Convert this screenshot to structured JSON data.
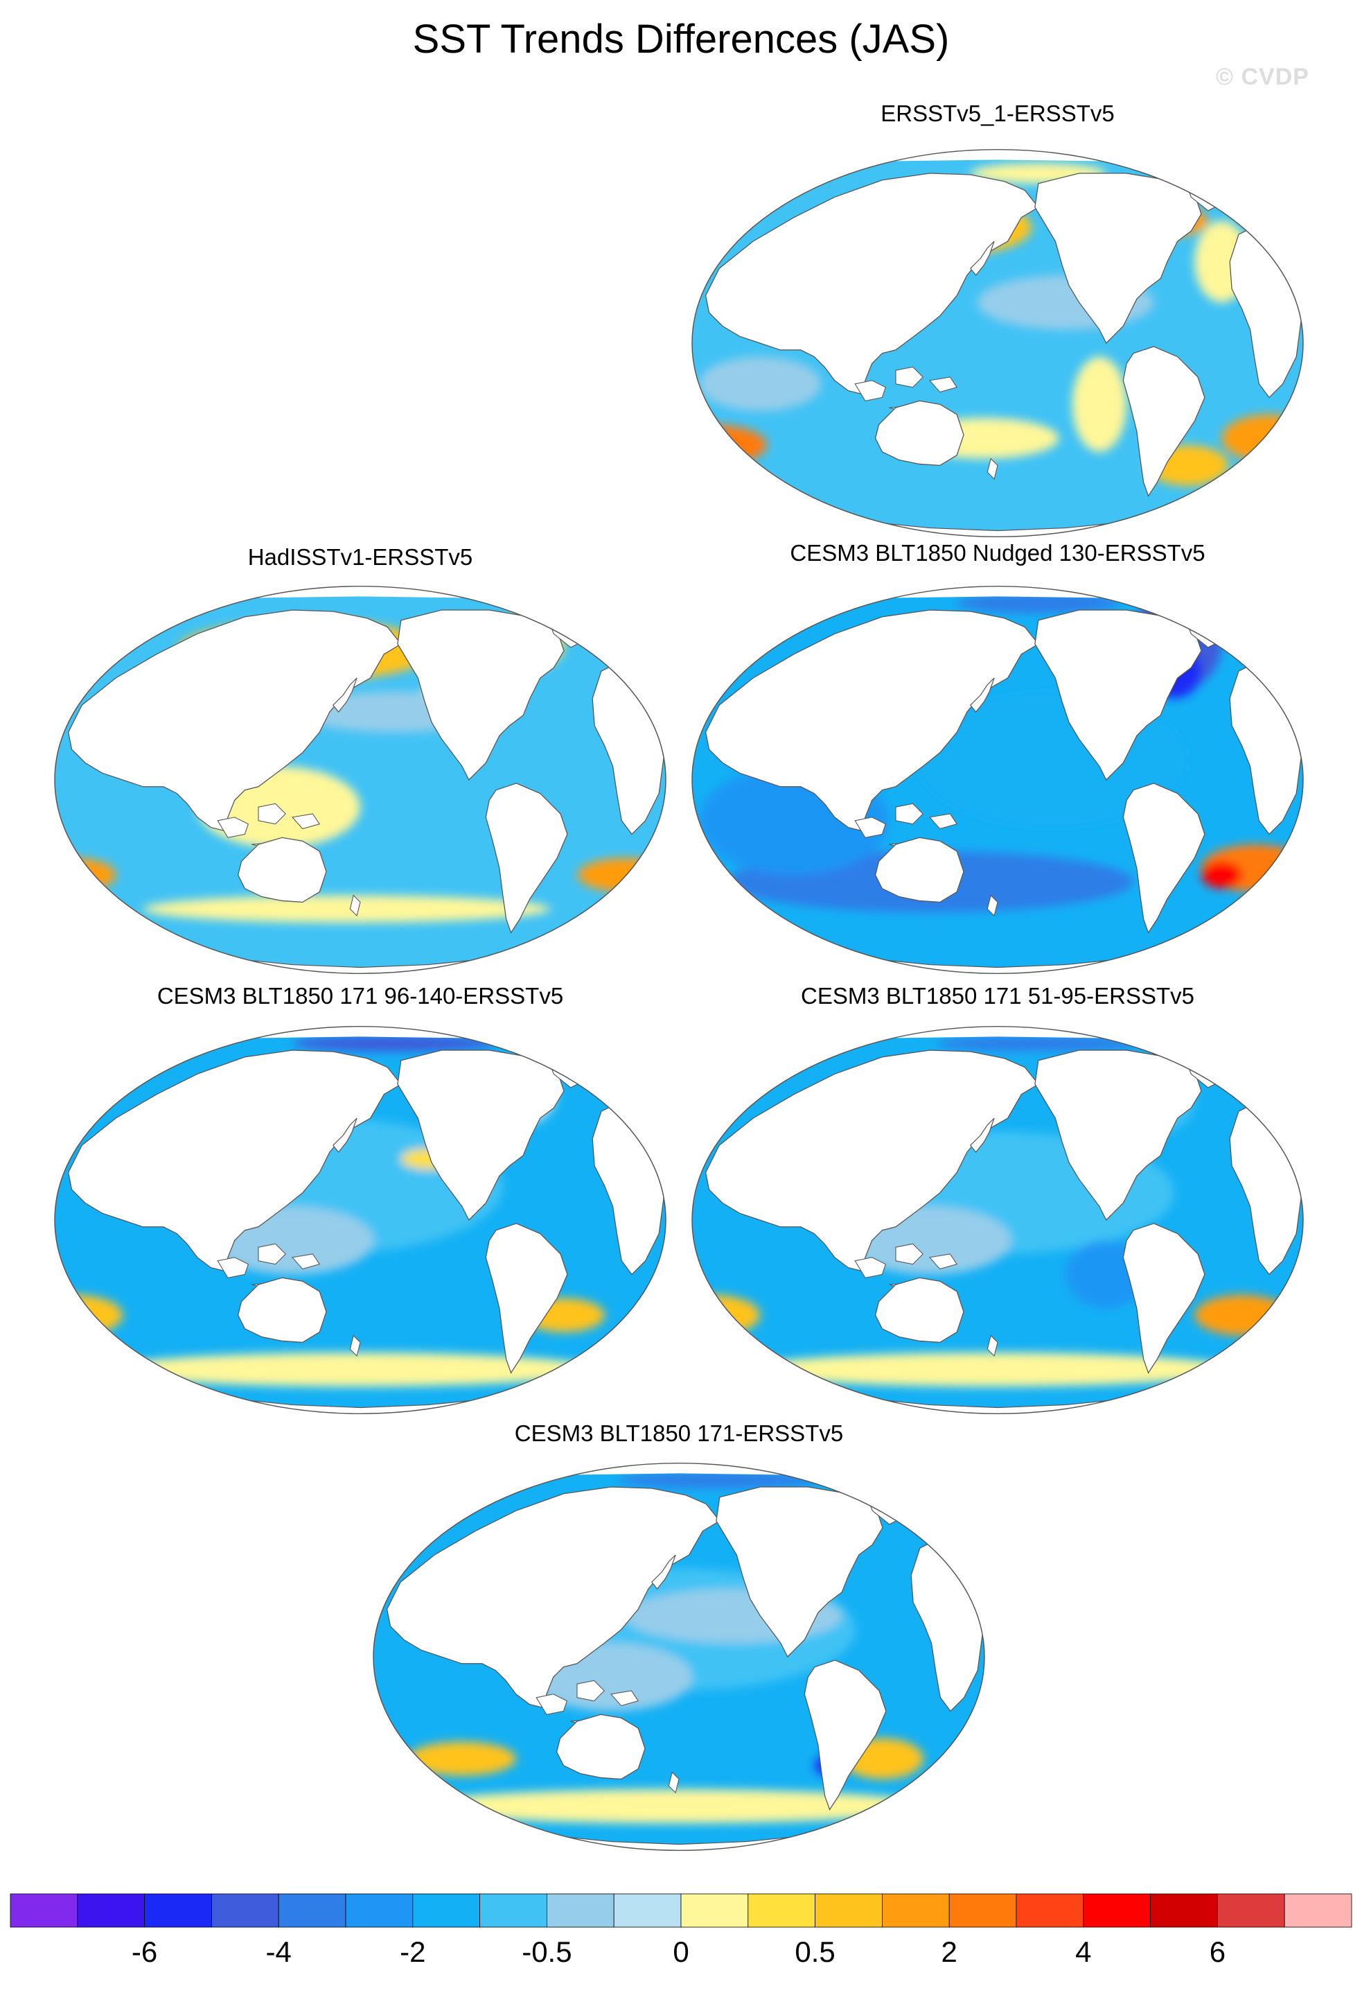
{
  "title": "SST Trends Differences (JAS)",
  "watermark": "© CVDP",
  "panels": [
    {
      "id": "p1",
      "title": "ERSSTv5_1-ERSSTv5",
      "pattern": "ersst1"
    },
    {
      "id": "p2",
      "title": "HadISSTv1-ERSSTv5",
      "pattern": "hadisst"
    },
    {
      "id": "p3",
      "title": "CESM3 BLT1850 Nudged 130-ERSSTv5",
      "pattern": "nudged"
    },
    {
      "id": "p4",
      "title": "CESM3 BLT1850 171 96-140-ERSSTv5",
      "pattern": "m96"
    },
    {
      "id": "p5",
      "title": "CESM3 BLT1850 171 51-95-ERSSTv5",
      "pattern": "m51"
    },
    {
      "id": "p6",
      "title": "CESM3 BLT1850 171-ERSSTv5",
      "pattern": "m171"
    }
  ],
  "colorbar": {
    "colors": [
      "#8129ed",
      "#3b14f0",
      "#1a29f5",
      "#3e5cdb",
      "#2f7ee8",
      "#1e96f5",
      "#14b0f5",
      "#41c2f5",
      "#96cdea",
      "#b8e2f4",
      "#fff79a",
      "#ffe03c",
      "#ffc31e",
      "#ff9c0f",
      "#ff7a0a",
      "#ff4314",
      "#ff0000",
      "#d20000",
      "#de3c3c",
      "#ffb4b4"
    ],
    "labels": [
      {
        "text": "-6",
        "boundary": 2
      },
      {
        "text": "-4",
        "boundary": 4
      },
      {
        "text": "-2",
        "boundary": 6
      },
      {
        "text": "-0.5",
        "boundary": 8
      },
      {
        "text": "0",
        "boundary": 10
      },
      {
        "text": "0.5",
        "boundary": 12
      },
      {
        "text": "2",
        "boundary": 14
      },
      {
        "text": "4",
        "boundary": 16
      },
      {
        "text": "6",
        "boundary": 18
      }
    ]
  }
}
